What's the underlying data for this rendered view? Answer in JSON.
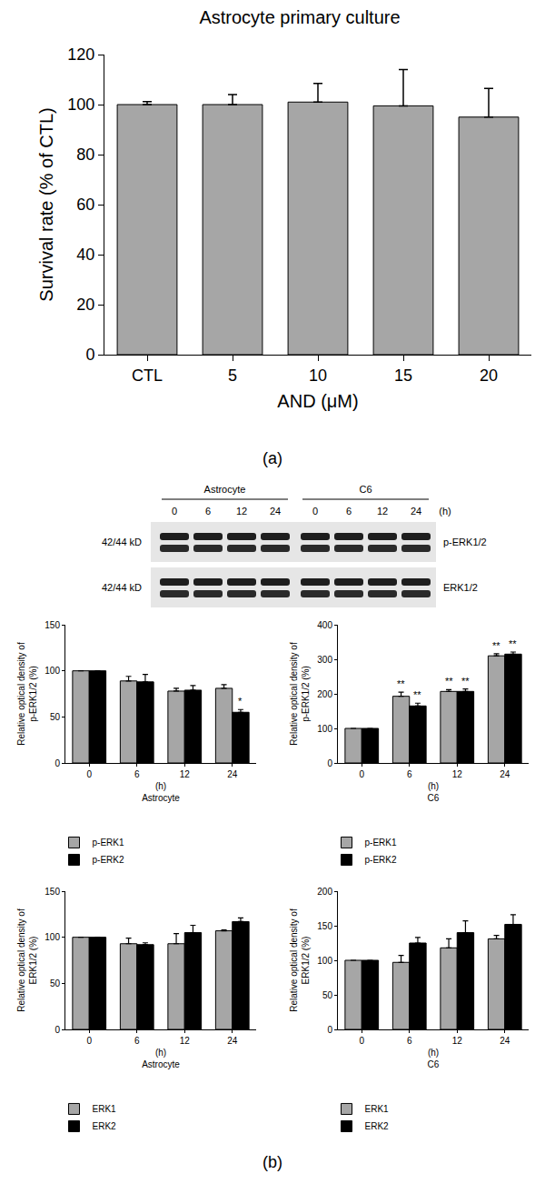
{
  "panels": [
    "(a)",
    "(b)"
  ],
  "blot": {
    "groups": [
      {
        "label": "Astrocyte",
        "lanes": [
          "0",
          "6",
          "12",
          "24"
        ]
      },
      {
        "label": "C6",
        "lanes": [
          "0",
          "6",
          "12",
          "24"
        ]
      }
    ],
    "unit": "(h)",
    "rows": [
      {
        "size": "42/44 kD",
        "label": "p-ERK1/2"
      },
      {
        "size": "42/44 kD",
        "label": "ERK1/2"
      }
    ]
  },
  "chart_data": [
    {
      "type": "bar",
      "title": "Astrocyte primary culture",
      "xlabel": "AND (μM)",
      "ylabel": "Survival rate (% of CTL)",
      "categories": [
        "CTL",
        "5",
        "10",
        "15",
        "20"
      ],
      "values": [
        100,
        100,
        101,
        99.5,
        95
      ],
      "error": [
        1.2,
        4,
        7.5,
        14.5,
        11.5
      ],
      "color": "#a6a6a6",
      "ylim": [
        0,
        120
      ],
      "yticks": [
        0,
        20,
        40,
        60,
        80,
        100,
        120
      ],
      "grid": false
    },
    {
      "type": "bar",
      "xlabel": [
        "(h)",
        "Astrocyte"
      ],
      "ylabel": [
        "Relative optical density of",
        "p-ERK1/2 (%)"
      ],
      "categories": [
        "0",
        "6",
        "12",
        "24"
      ],
      "series": [
        {
          "name": "p-ERK1",
          "color": "#a6a6a6",
          "values": [
            100,
            89,
            78,
            81
          ],
          "error": [
            0,
            5,
            3,
            4
          ]
        },
        {
          "name": "p-ERK2",
          "color": "#000000",
          "values": [
            100,
            88,
            79,
            55
          ],
          "error": [
            0,
            8,
            5,
            3
          ]
        }
      ],
      "ylim": [
        0,
        150
      ],
      "yticks": [
        0,
        50,
        100,
        150
      ],
      "grid": false,
      "legend": "bottom",
      "annotations": [
        {
          "category": "24",
          "series": "p-ERK2",
          "text": "*"
        }
      ]
    },
    {
      "type": "bar",
      "xlabel": [
        "(h)",
        "C6"
      ],
      "ylabel": [
        "Relative optical density of",
        "p-ERK1/2 (%)"
      ],
      "categories": [
        "0",
        "6",
        "12",
        "24"
      ],
      "series": [
        {
          "name": "p-ERK1",
          "color": "#a6a6a6",
          "values": [
            100,
            193,
            207,
            310
          ],
          "error": [
            0,
            12,
            5,
            6
          ]
        },
        {
          "name": "p-ERK2",
          "color": "#000000",
          "values": [
            100,
            165,
            207,
            315
          ],
          "error": [
            0,
            8,
            7,
            6
          ]
        }
      ],
      "ylim": [
        0,
        400
      ],
      "yticks": [
        0,
        100,
        200,
        300,
        400
      ],
      "grid": false,
      "legend": "bottom",
      "annotations": [
        {
          "category": "6",
          "series": "p-ERK1",
          "text": "**"
        },
        {
          "category": "6",
          "series": "p-ERK2",
          "text": "**"
        },
        {
          "category": "12",
          "series": "p-ERK1",
          "text": "**"
        },
        {
          "category": "12",
          "series": "p-ERK2",
          "text": "**"
        },
        {
          "category": "24",
          "series": "p-ERK1",
          "text": "**"
        },
        {
          "category": "24",
          "series": "p-ERK2",
          "text": "**"
        }
      ]
    },
    {
      "type": "bar",
      "xlabel": [
        "(h)",
        "Astrocyte"
      ],
      "ylabel": [
        "Relative optical density of",
        "ERK1/2 (%)"
      ],
      "categories": [
        "0",
        "6",
        "12",
        "24"
      ],
      "series": [
        {
          "name": "ERK1",
          "color": "#a6a6a6",
          "values": [
            100,
            93,
            93,
            107
          ],
          "error": [
            0,
            6,
            11,
            1
          ]
        },
        {
          "name": "ERK2",
          "color": "#000000",
          "values": [
            100,
            92,
            105,
            117
          ],
          "error": [
            0,
            2,
            8,
            4
          ]
        }
      ],
      "ylim": [
        0,
        150
      ],
      "yticks": [
        0,
        50,
        100,
        150
      ],
      "grid": false,
      "legend": "bottom"
    },
    {
      "type": "bar",
      "xlabel": [
        "(h)",
        "C6"
      ],
      "ylabel": [
        "Relative optical density of",
        "ERK1/2 (%)"
      ],
      "categories": [
        "0",
        "6",
        "12",
        "24"
      ],
      "series": [
        {
          "name": "ERK1",
          "color": "#a6a6a6",
          "values": [
            100,
            97,
            118,
            131
          ],
          "error": [
            0,
            10,
            13,
            5
          ]
        },
        {
          "name": "ERK2",
          "color": "#000000",
          "values": [
            100,
            125,
            140,
            152
          ],
          "error": [
            0,
            8,
            17,
            14
          ]
        }
      ],
      "ylim": [
        0,
        200
      ],
      "yticks": [
        0,
        50,
        100,
        150,
        200
      ],
      "grid": false,
      "legend": "bottom"
    }
  ]
}
